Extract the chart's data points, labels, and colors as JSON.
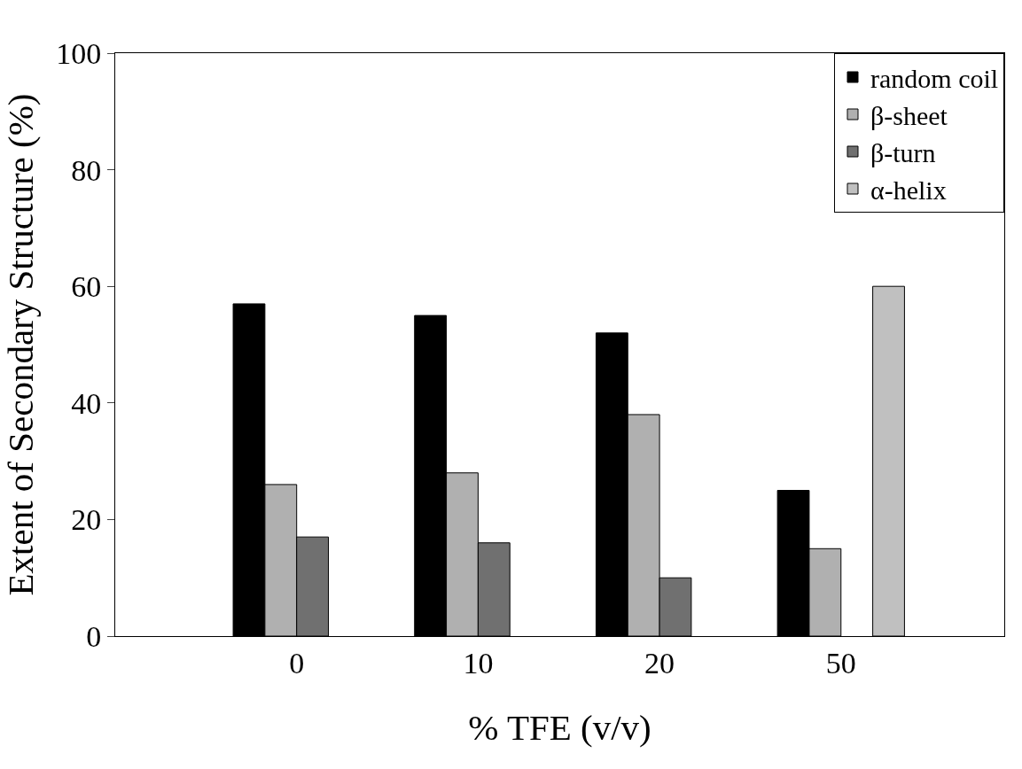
{
  "chart_data": {
    "type": "bar",
    "xlabel": "% TFE (v/v)",
    "ylabel": "Extent of Secondary Structure (%)",
    "categories": [
      "0",
      "10",
      "20",
      "50"
    ],
    "series": [
      {
        "name": "random coil",
        "color": "#000000",
        "values": [
          57,
          55,
          52,
          25
        ]
      },
      {
        "name": "β-sheet",
        "color": "#b0b0b0",
        "values": [
          26,
          28,
          38,
          15
        ]
      },
      {
        "name": "β-turn",
        "color": "#707070",
        "values": [
          17,
          16,
          10,
          null
        ]
      },
      {
        "name": "α-helix",
        "color": "#c0c0c0",
        "values": [
          null,
          null,
          null,
          60
        ]
      }
    ],
    "ylim": [
      0,
      100
    ],
    "yticks": [
      0,
      20,
      40,
      60,
      80,
      100
    ],
    "legend": "top right"
  }
}
